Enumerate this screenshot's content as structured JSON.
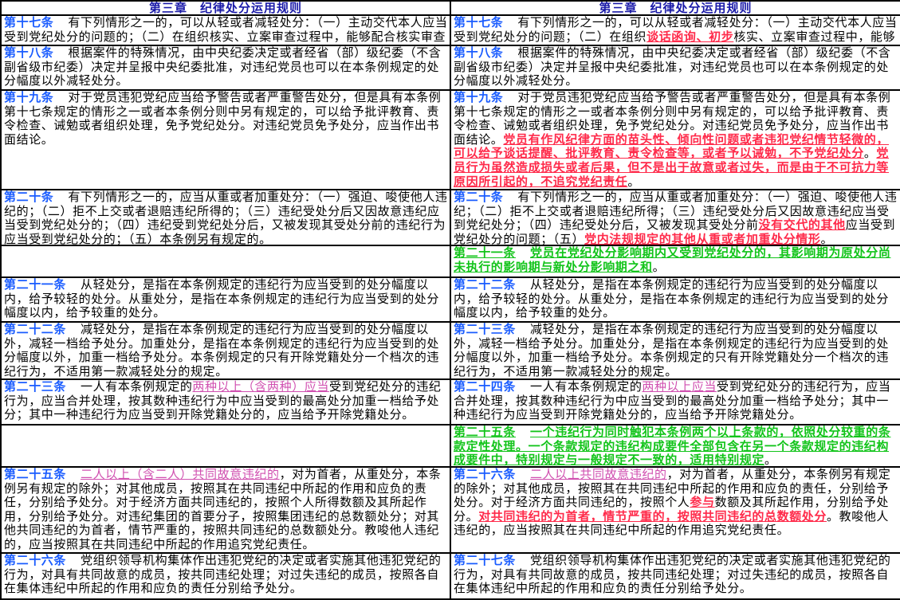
{
  "header": {
    "left_title": "第三章　纪律处分运用规则",
    "right_title": "第三章　纪律处分运用规则"
  },
  "colors": {
    "article_number": "#1a5cff",
    "deleted_or_changed": "#d050b0",
    "added_red": "#ff2a4a",
    "added_green": "#12c41a",
    "title": "#1a1aa8"
  },
  "rows": [
    {
      "left": {
        "num": "第十七条",
        "segments": [
          {
            "style": "plain",
            "text": "有下列情形之一的，可以从轻或者减轻处分：（一）主动交代本人应当受到党纪处分的问题的；（二）在组织核实、立案审查过程中，能够配合核实审查工"
          }
        ]
      },
      "right": {
        "num": "第十七条",
        "segments": [
          {
            "style": "plain",
            "text": "有下列情形之一的，可以从轻或者减轻处分：（一）主动交代本人应当受到党纪处分的问题；（二）在组织"
          },
          {
            "style": "red",
            "text": "谈话函询、初步"
          },
          {
            "style": "plain",
            "text": "核实、立案审查过程中，能够"
          }
        ]
      }
    },
    {
      "left": {
        "num": "第十八条",
        "segments": [
          {
            "style": "plain",
            "text": "根据案件的特殊情况，由中央纪委决定或者经省（部）级纪委（不含副省级市纪委）决定并呈报中央纪委批准，对违纪党员也可以在本条例规定的处分幅度以外减轻处分。"
          }
        ]
      },
      "right": {
        "num": "第十八条",
        "segments": [
          {
            "style": "plain",
            "text": "根据案件的特殊情况，由中央纪委决定或者经省（部）级纪委（不含副省级市纪委）决定并呈报中央纪委批准，对违纪党员也可以在本条例规定的处分幅度以外减轻处分。"
          }
        ]
      }
    },
    {
      "left": {
        "num": "第十九条",
        "segments": [
          {
            "style": "plain",
            "text": "对于党员违犯党纪应当给予警告或者严重警告处分，但是具有本条例第十七条规定的情形之一或者本条例分则中另有规定的，可以给予批评教育、责令检查、诫勉或者组织处理，免予党纪处分。对违纪党员免予处分，应当作出书面结论。"
          }
        ]
      },
      "right": {
        "num": "第十九条",
        "segments": [
          {
            "style": "plain",
            "text": "对于党员违犯党纪应当给予警告或者严重警告处分，但是具有本条例第十七条规定的情形之一或者本条例分则中另有规定的，可以给予批评教育、责令检查、诫勉或者组织处理，免予党纪处分。对违纪党员免予处分，应当作出书面结论。"
          },
          {
            "style": "red",
            "text": "党员有作风纪律方面的苗头性、倾向性问题或者违犯党纪情节轻微的，可以给予谈话提醒、批评教育、责令检查等，或者予以诫勉，不予党纪处分"
          },
          {
            "style": "plain",
            "text": "。"
          },
          {
            "style": "red",
            "text": "党员行为虽然造成损失或者后果，但不是出于故意或者过失，而是由于不可抗力等原因所引起的，不追究党纪责任"
          },
          {
            "style": "plain",
            "text": "。"
          }
        ]
      }
    },
    {
      "left": {
        "num": "第二十条",
        "segments": [
          {
            "style": "plain",
            "text": "有下列情形之一的，应当从重或者加重处分：（一）强迫、唆使他人违纪的；（二）拒不上交或者退赔违纪所得的；（三）违纪受处分后又因故意违纪应当受到党纪处分的；（四）违纪受到党纪处分后，又被发现其受处分前的违纪行为应当受到党纪处分的；（五）本条例另有规定的。"
          }
        ]
      },
      "right": {
        "num": "第二十条",
        "segments": [
          {
            "style": "plain",
            "text": "有下列情形之一的，应当从重或者加重处分：（一）强迫、唆使他人违纪；（二）拒不上交或者退赔违纪所得；（三）违纪受处分后又因故意违纪应当受到党纪处分；（四）违纪受处分后，又被发现其受处分前"
          },
          {
            "style": "red",
            "text": "没有交代的其他"
          },
          {
            "style": "plain",
            "text": "应当受到党纪处分的问题；（五）"
          },
          {
            "style": "red",
            "text": "党内法规规定的其他从重或者加重处分情形"
          },
          {
            "style": "plain",
            "text": "。"
          }
        ]
      }
    },
    {
      "left": null,
      "right": {
        "num": "第二十一条",
        "num_style": "green",
        "segments": [
          {
            "style": "green",
            "text": "党员在党纪处分影响期内又受到党纪处分的，其影响期为原处分尚未执行的影响期与新处分影响期之和"
          },
          {
            "style": "plain",
            "text": "。"
          }
        ]
      }
    },
    {
      "left": {
        "num": "第二十一条",
        "segments": [
          {
            "style": "plain",
            "text": "从轻处分，是指在本条例规定的违纪行为应当受到的处分幅度以内，给予较轻的处分。从重处分，是指在本条例规定的违纪行为应当受到的处分幅度以内，给予较重的处分。"
          }
        ]
      },
      "right": {
        "num": "第二十二条",
        "segments": [
          {
            "style": "plain",
            "text": "从轻处分，是指在本条例规定的违纪行为应当受到的处分幅度以内，给予较轻的处分。从重处分，是指在本条例规定的违纪行为应当受到的处分幅度以内，给予较重的处分。"
          }
        ]
      }
    },
    {
      "left": {
        "num": "第二十二条",
        "segments": [
          {
            "style": "plain",
            "text": "减轻处分，是指在本条例规定的违纪行为应当受到的处分幅度以外，减轻一档给予处分。加重处分，是指在本条例规定的违纪行为应当受到的处分幅度以外，加重一档给予处分。本条例规定的只有开除党籍处分一个档次的违纪行为，不适用第一款减轻处分的规定。"
          }
        ]
      },
      "right": {
        "num": "第二十三条",
        "segments": [
          {
            "style": "plain",
            "text": "减轻处分，是指在本条例规定的违纪行为应当受到的处分幅度以外，减轻一档给予处分。加重处分，是指在本条例规定的违纪行为应当受到的处分幅度以外，加重一档给予处分。本条例规定的只有开除党籍处分一个档次的违纪行为，不适用第一款减轻处分的规定。"
          }
        ]
      }
    },
    {
      "left": {
        "num": "第二十三条",
        "segments": [
          {
            "style": "plain",
            "text": "一人有本条例规定的"
          },
          {
            "style": "pink",
            "text": "两种以上（含两种）应当"
          },
          {
            "style": "plain",
            "text": "受到党纪处分的违纪行为，应当合并处理，按其数种违纪行为中应当受到的最高处分加重一档给予处分；其中一种违纪行为应当受到开除党籍处分的，应当给予开除党籍处分。"
          }
        ]
      },
      "right": {
        "num": "第二十四条",
        "segments": [
          {
            "style": "plain",
            "text": "一人有本条例规定的"
          },
          {
            "style": "pink",
            "text": "两种以上应当"
          },
          {
            "style": "plain",
            "text": "受到党纪处分的违纪行为，应当合并处理，按其数种违纪行为中应当受到的最高处分加重一档给予处分；其中一种违纪行为应当受到开除党籍处分的，应当给予开除党籍处分。"
          }
        ]
      }
    },
    {
      "left": null,
      "right": {
        "num": "第二十五条",
        "num_style": "green",
        "segments": [
          {
            "style": "green",
            "text": "一个违纪行为同时触犯本条例两个以上条款的，依照处分较重的条款定性处理。一个条款规定的违纪构成要件全部包含在另一个条款规定的违纪构成要件中，特别规定与一般规定不一致的，适用特别规定"
          },
          {
            "style": "plain",
            "text": "。"
          }
        ]
      }
    },
    {
      "left": {
        "num": "第二十五条",
        "segments": [
          {
            "style": "pink",
            "text": "二人以上（含二人）共同故意违纪的"
          },
          {
            "style": "plain",
            "text": "，对为首者，从重处分，本条例另有规定的除外；对其他成员，按照其在共同违纪中所起的作用和应负的责任，分别给予处分。对于经济方面共同违纪的，按照个人所得数额及其所起作用，分别给予处分。对违纪集团的首要分子，按照集团违纪的总数额处分；对其他共同违纪的为首者，情节严重的，按照共同违纪的总数额处分。教唆他人违纪的，应当按照其在共同违纪中所起的作用追究党纪责任。"
          }
        ]
      },
      "right": {
        "num": "第二十六条",
        "segments": [
          {
            "style": "pink",
            "text": "二人以上共同故意违纪的"
          },
          {
            "style": "plain",
            "text": "，对为首者，从重处分，本条例另有规定的除外；对其他成员，按照其在共同违纪中所起的作用和应负的责任，分别给予处分。对于经济方面共同违纪的，按照个人"
          },
          {
            "style": "red",
            "text": "参与"
          },
          {
            "style": "plain",
            "text": "数额及其所起作用，分别给予处分。"
          },
          {
            "style": "red",
            "text": "对共同违纪的为首者，情节严重的，按照共同违纪的总数额处分"
          },
          {
            "style": "plain",
            "text": "。教唆他人违纪的，应当按照其在共同违纪中所起的作用追究党纪责任。"
          }
        ]
      }
    },
    {
      "left": {
        "num": "第二十六条",
        "segments": [
          {
            "style": "plain",
            "text": "党组织领导机构集体作出违犯党纪的决定或者实施其他违犯党纪的行为，对具有共同故意的成员，按共同违纪处理；对过失违纪的成员，按照各自在集体违纪中所起的作用和应负的责任分别给予处分。"
          }
        ]
      },
      "right": {
        "num": "第二十七条",
        "segments": [
          {
            "style": "plain",
            "text": "党组织领导机构集体作出违犯党纪的决定或者实施其他违犯党纪的行为，对具有共同故意的成员，按共同违纪处理；对过失违纪的成员，按照各自在集体违纪中所起的作用和应负的责任分别给予处分。"
          }
        ]
      }
    }
  ]
}
